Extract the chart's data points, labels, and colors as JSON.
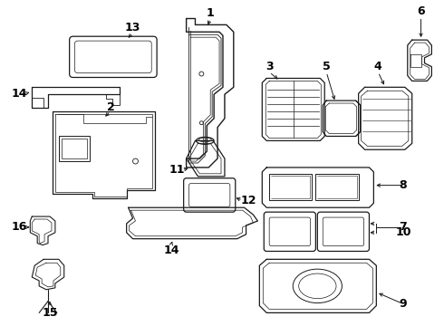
{
  "background_color": "#ffffff",
  "line_color": "#1a1a1a",
  "text_color": "#000000",
  "fig_width": 4.9,
  "fig_height": 3.6,
  "dpi": 100,
  "font_size": 9
}
